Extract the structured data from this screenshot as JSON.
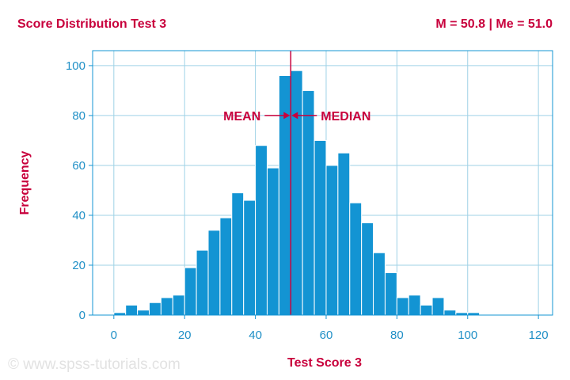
{
  "header": {
    "title": "Score Distribution Test 3",
    "stats": "M = 50.8 | Me = 51.0"
  },
  "watermark": "© www.spss-tutorials.com",
  "chart_data": {
    "type": "bar",
    "subtype": "histogram",
    "xlabel": "Test Score 3",
    "ylabel": "Frequency",
    "xlim": [
      -6,
      124
    ],
    "ylim": [
      0,
      106
    ],
    "xticks": [
      0,
      20,
      40,
      60,
      80,
      100,
      120
    ],
    "yticks": [
      0,
      20,
      40,
      60,
      80,
      100
    ],
    "grid": true,
    "bin_width": 3.33,
    "bins": [
      {
        "x0": 0.0,
        "value": 1
      },
      {
        "x0": 3.33,
        "value": 4
      },
      {
        "x0": 6.67,
        "value": 2
      },
      {
        "x0": 10.0,
        "value": 5
      },
      {
        "x0": 13.33,
        "value": 7
      },
      {
        "x0": 16.67,
        "value": 8
      },
      {
        "x0": 20.0,
        "value": 19
      },
      {
        "x0": 23.33,
        "value": 26
      },
      {
        "x0": 26.67,
        "value": 34
      },
      {
        "x0": 30.0,
        "value": 39
      },
      {
        "x0": 33.33,
        "value": 49
      },
      {
        "x0": 36.67,
        "value": 46
      },
      {
        "x0": 40.0,
        "value": 68
      },
      {
        "x0": 43.33,
        "value": 59
      },
      {
        "x0": 46.67,
        "value": 96
      },
      {
        "x0": 50.0,
        "value": 98
      },
      {
        "x0": 53.33,
        "value": 90
      },
      {
        "x0": 56.67,
        "value": 70
      },
      {
        "x0": 60.0,
        "value": 60
      },
      {
        "x0": 63.33,
        "value": 65
      },
      {
        "x0": 66.67,
        "value": 45
      },
      {
        "x0": 70.0,
        "value": 37
      },
      {
        "x0": 73.33,
        "value": 25
      },
      {
        "x0": 76.67,
        "value": 17
      },
      {
        "x0": 80.0,
        "value": 7
      },
      {
        "x0": 83.33,
        "value": 8
      },
      {
        "x0": 86.67,
        "value": 4
      },
      {
        "x0": 90.0,
        "value": 7
      },
      {
        "x0": 93.33,
        "value": 2
      },
      {
        "x0": 96.67,
        "value": 1
      },
      {
        "x0": 100.0,
        "value": 1
      }
    ],
    "reference_line": {
      "x": 50.0
    },
    "annotations": {
      "mean": {
        "label": "MEAN",
        "x": 50.8,
        "y": 80
      },
      "median": {
        "label": "MEDIAN",
        "x": 51.0,
        "y": 80
      }
    },
    "colors": {
      "bar": "#1394d3",
      "bar_edge": "#ffffff",
      "grid": "#9fd2e6",
      "axis_text": "#1f8fc6",
      "accent": "#c8003c",
      "frame": "#1394d3"
    }
  }
}
